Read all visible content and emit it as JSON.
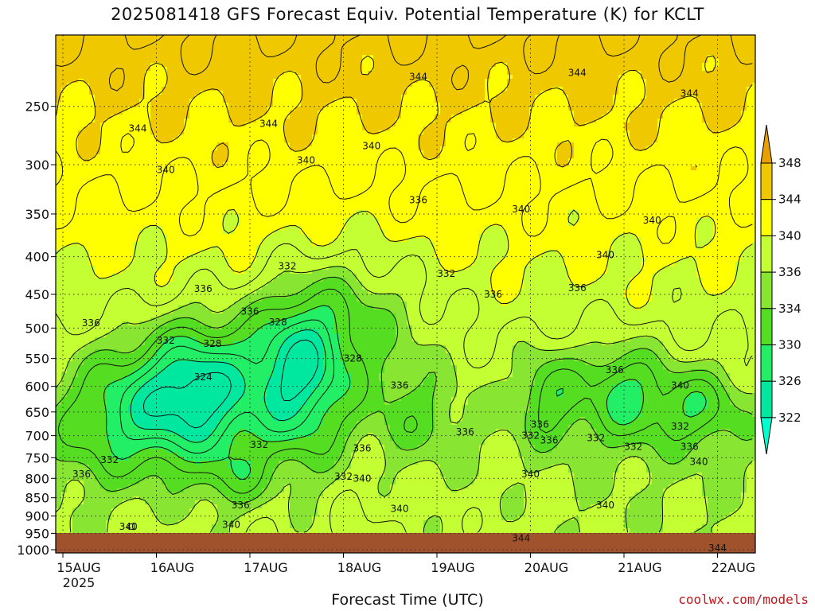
{
  "chart_data": {
    "type": "contour",
    "title": "2025081418 GFS Forecast Equiv. Potential Temperature (K) for KCLT",
    "xlabel": "Forecast Time (UTC)",
    "credit": "coolwx.com/models",
    "x_ticks": [
      "15AUG",
      "16AUG",
      "17AUG",
      "18AUG",
      "19AUG",
      "20AUG",
      "21AUG",
      "22AUG"
    ],
    "x_year_label": "2025",
    "y_ticks": [
      250,
      300,
      350,
      400,
      450,
      500,
      550,
      600,
      650,
      700,
      750,
      800,
      850,
      900,
      950,
      1000
    ],
    "y_scale": "log-pressure",
    "y_range": [
      200,
      1010
    ],
    "grid": true,
    "colorbar": {
      "labels": [
        322,
        326,
        330,
        334,
        336,
        340,
        344,
        348
      ],
      "colors": [
        "#00e8a0",
        "#22ee66",
        "#55dd22",
        "#88e633",
        "#c4ff33",
        "#ffff00",
        "#f0c800",
        "#e8a000"
      ]
    },
    "contour_labels": [
      {
        "text": "344",
        "t": 0.8,
        "p": 268
      },
      {
        "text": "344",
        "t": 2.2,
        "p": 264
      },
      {
        "text": "344",
        "t": 3.8,
        "p": 228
      },
      {
        "text": "344",
        "t": 5.5,
        "p": 225
      },
      {
        "text": "344",
        "t": 6.7,
        "p": 240
      },
      {
        "text": "340",
        "t": 1.1,
        "p": 305
      },
      {
        "text": "340",
        "t": 2.6,
        "p": 296
      },
      {
        "text": "340",
        "t": 3.3,
        "p": 283
      },
      {
        "text": "336",
        "t": 3.8,
        "p": 335
      },
      {
        "text": "340",
        "t": 4.9,
        "p": 345
      },
      {
        "text": "340",
        "t": 6.3,
        "p": 357
      },
      {
        "text": "340",
        "t": 5.8,
        "p": 398
      },
      {
        "text": "332",
        "t": 2.4,
        "p": 412
      },
      {
        "text": "332",
        "t": 4.1,
        "p": 422
      },
      {
        "text": "336",
        "t": 1.5,
        "p": 442
      },
      {
        "text": "336",
        "t": 4.6,
        "p": 450
      },
      {
        "text": "336",
        "t": 5.5,
        "p": 441
      },
      {
        "text": "336",
        "t": 0.3,
        "p": 492
      },
      {
        "text": "336",
        "t": 2.0,
        "p": 475
      },
      {
        "text": "332",
        "t": 1.1,
        "p": 520
      },
      {
        "text": "328",
        "t": 1.6,
        "p": 525
      },
      {
        "text": "328",
        "t": 2.3,
        "p": 491
      },
      {
        "text": "328",
        "t": 3.1,
        "p": 550
      },
      {
        "text": "324",
        "t": 1.5,
        "p": 583
      },
      {
        "text": "336",
        "t": 3.6,
        "p": 598
      },
      {
        "text": "336",
        "t": 5.9,
        "p": 570
      },
      {
        "text": "340",
        "t": 6.6,
        "p": 598
      },
      {
        "text": "336",
        "t": 5.1,
        "p": 676
      },
      {
        "text": "332",
        "t": 5.0,
        "p": 700
      },
      {
        "text": "336",
        "t": 5.2,
        "p": 710
      },
      {
        "text": "332",
        "t": 5.7,
        "p": 705
      },
      {
        "text": "332",
        "t": 6.1,
        "p": 725
      },
      {
        "text": "332",
        "t": 6.6,
        "p": 680
      },
      {
        "text": "336",
        "t": 6.7,
        "p": 725
      },
      {
        "text": "336",
        "t": 4.3,
        "p": 692
      },
      {
        "text": "332",
        "t": 2.1,
        "p": 720
      },
      {
        "text": "336",
        "t": 3.2,
        "p": 728
      },
      {
        "text": "332",
        "t": 0.5,
        "p": 755
      },
      {
        "text": "336",
        "t": 0.2,
        "p": 790
      },
      {
        "text": "332",
        "t": 3.0,
        "p": 795
      },
      {
        "text": "340",
        "t": 3.2,
        "p": 800
      },
      {
        "text": "340",
        "t": 5.0,
        "p": 790
      },
      {
        "text": "340",
        "t": 6.8,
        "p": 760
      },
      {
        "text": "336",
        "t": 1.9,
        "p": 870
      },
      {
        "text": "340",
        "t": 3.6,
        "p": 880
      },
      {
        "text": "340",
        "t": 5.8,
        "p": 870
      },
      {
        "text": "340",
        "t": 0.7,
        "p": 930
      },
      {
        "text": "340",
        "t": 1.8,
        "p": 925
      },
      {
        "text": "344",
        "t": 4.9,
        "p": 965
      },
      {
        "text": "344",
        "t": 7.0,
        "p": 995
      }
    ]
  }
}
